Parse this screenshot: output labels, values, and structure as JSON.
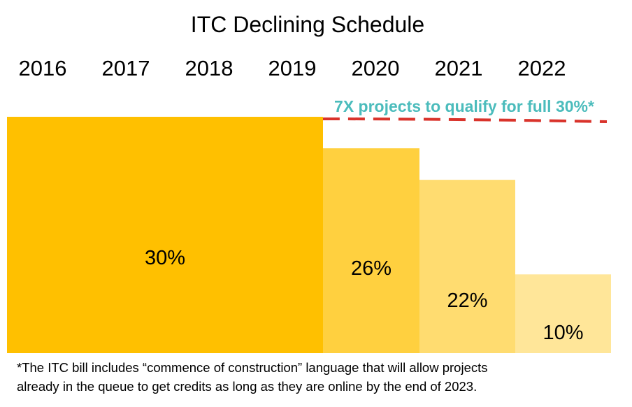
{
  "chart_data": {
    "type": "bar",
    "title": "ITC Declining Schedule",
    "xlabel": "",
    "ylabel": "",
    "ylim": [
      0,
      30
    ],
    "grid": false,
    "legend": "none",
    "categories": [
      "2016",
      "2017",
      "2018",
      "2019",
      "2020",
      "2021",
      "2022"
    ],
    "bars": [
      {
        "span": [
          "2016",
          "2019"
        ],
        "value": 30,
        "label": "30%",
        "color": "#ffc000"
      },
      {
        "span": [
          "2020",
          "2020"
        ],
        "value": 26,
        "label": "26%",
        "color": "#ffd03f"
      },
      {
        "span": [
          "2021",
          "2021"
        ],
        "value": 22,
        "label": "22%",
        "color": "#ffdc70"
      },
      {
        "span": [
          "2022",
          "2022"
        ],
        "value": 10,
        "label": "10%",
        "color": "#ffe699"
      }
    ],
    "annotation": {
      "text": "7X projects to qualify for full 30%*",
      "text_color": "#4bbcbc",
      "line_color": "#d9332b",
      "line_style": "dashed",
      "applies_to": [
        "2020",
        "2021",
        "2022"
      ],
      "level": 30
    }
  },
  "footnote": {
    "line1": "*The ITC bill includes “commence of construction” language that will allow projects",
    "line2": "already in the queue to get credits as long as they are online by the end of 2023."
  }
}
